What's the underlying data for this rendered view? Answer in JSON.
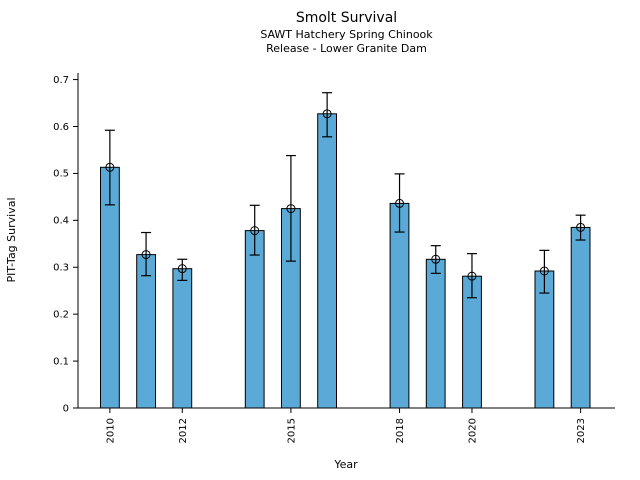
{
  "chart_data": {
    "type": "bar",
    "title": "Smolt Survival",
    "subtitle_lines": [
      "SAWT Hatchery Spring Chinook",
      "Release - Lower Granite Dam"
    ],
    "xlabel": "Year",
    "ylabel": "PIT-Tag Survival",
    "x": [
      2010,
      2011,
      2012,
      2014,
      2015,
      2016,
      2018,
      2019,
      2020,
      2022,
      2023
    ],
    "values": [
      0.513,
      0.327,
      0.297,
      0.378,
      0.425,
      0.627,
      0.436,
      0.317,
      0.281,
      0.292,
      0.385
    ],
    "error_low": [
      0.433,
      0.282,
      0.272,
      0.326,
      0.313,
      0.578,
      0.375,
      0.287,
      0.235,
      0.245,
      0.358
    ],
    "error_high": [
      0.592,
      0.374,
      0.317,
      0.432,
      0.538,
      0.672,
      0.499,
      0.346,
      0.329,
      0.336,
      0.411
    ],
    "xticks": [
      2010,
      2012,
      2015,
      2018,
      2020,
      2023
    ],
    "yticks": [
      0,
      0.1,
      0.2,
      0.3,
      0.4,
      0.5,
      0.6,
      0.7
    ],
    "ytick_labels": [
      "0",
      "0.1",
      "0.2",
      "0.3",
      "0.4",
      "0.5",
      "0.6",
      "0.7"
    ],
    "xlim": [
      2009.12,
      2023.95
    ],
    "ylim": [
      0,
      0.714
    ],
    "bar_width": 0.52,
    "bar_color": "#5AA9D6",
    "bar_edge_color": "#000000",
    "errorbar_color": "#000000",
    "marker": "open-circle",
    "grid": false,
    "legend": null
  }
}
